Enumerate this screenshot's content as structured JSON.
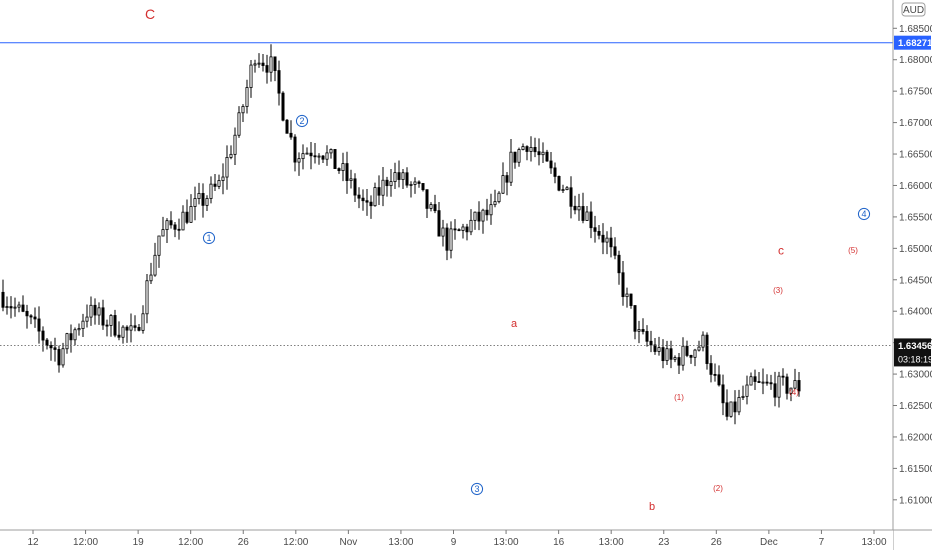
{
  "chart_data": {
    "type": "candlestick",
    "currency_badge": "AUD",
    "y_ticks": [
      "1.68500",
      "1.68000",
      "1.67500",
      "1.67000",
      "1.66500",
      "1.66000",
      "1.65500",
      "1.65000",
      "1.64500",
      "1.64000",
      "1.63500",
      "1.63000",
      "1.62500",
      "1.62000",
      "1.61500",
      "1.61000"
    ],
    "x_ticks": [
      "12",
      "12:00",
      "19",
      "12:00",
      "26",
      "12:00",
      "Nov",
      "13:00",
      "9",
      "13:00",
      "16",
      "13:00",
      "23",
      "26",
      "Dec",
      "7",
      "13:00"
    ],
    "ylim": [
      1.6052,
      1.6895
    ],
    "horizontal_line": {
      "label": "1.68271",
      "value": 1.68271,
      "color": "#2962ff"
    },
    "last_price": {
      "label": "1.63456",
      "value": 1.63456,
      "countdown": "03:18:19"
    },
    "candle_count": 200,
    "anchors": [
      [
        0,
        1.643
      ],
      [
        8,
        1.638
      ],
      [
        15,
        1.633
      ],
      [
        22,
        1.64
      ],
      [
        28,
        1.638
      ],
      [
        34,
        1.636
      ],
      [
        40,
        1.652
      ],
      [
        48,
        1.656
      ],
      [
        55,
        1.66
      ],
      [
        60,
        1.67
      ],
      [
        64,
        1.681
      ],
      [
        68,
        1.679
      ],
      [
        74,
        1.665
      ],
      [
        80,
        1.666
      ],
      [
        86,
        1.662
      ],
      [
        92,
        1.656
      ],
      [
        98,
        1.662
      ],
      [
        105,
        1.659
      ],
      [
        112,
        1.651
      ],
      [
        118,
        1.654
      ],
      [
        124,
        1.656
      ],
      [
        128,
        1.664
      ],
      [
        132,
        1.667
      ],
      [
        138,
        1.662
      ],
      [
        145,
        1.657
      ],
      [
        152,
        1.651
      ],
      [
        160,
        1.636
      ],
      [
        168,
        1.632
      ],
      [
        176,
        1.635
      ],
      [
        182,
        1.623
      ],
      [
        188,
        1.628
      ]
    ],
    "waves": [
      {
        "label": "C",
        "color": "red",
        "ring": false,
        "x": 150,
        "y": 14,
        "size": 14
      },
      {
        "label": "2",
        "color": "blue",
        "ring": true,
        "x": 302,
        "y": 121,
        "size": 9
      },
      {
        "label": "1",
        "color": "blue",
        "ring": true,
        "x": 209,
        "y": 238,
        "size": 9
      },
      {
        "label": "3",
        "color": "blue",
        "ring": true,
        "x": 477,
        "y": 489,
        "size": 9
      },
      {
        "label": "a",
        "color": "red",
        "ring": false,
        "x": 514,
        "y": 323,
        "size": 11
      },
      {
        "label": "b",
        "color": "red",
        "ring": false,
        "x": 652,
        "y": 506,
        "size": 11
      },
      {
        "label": "(1)",
        "color": "red",
        "ring": false,
        "x": 679,
        "y": 397,
        "size": 8
      },
      {
        "label": "(2)",
        "color": "red",
        "ring": false,
        "x": 718,
        "y": 488,
        "size": 8
      },
      {
        "label": "(3)",
        "color": "red",
        "ring": false,
        "x": 778,
        "y": 290,
        "size": 8
      },
      {
        "label": "(4)",
        "color": "red",
        "ring": false,
        "x": 794,
        "y": 392,
        "size": 8
      },
      {
        "label": "c",
        "color": "red",
        "ring": false,
        "x": 781,
        "y": 250,
        "size": 12
      },
      {
        "label": "(5)",
        "color": "red",
        "ring": false,
        "x": 853,
        "y": 250,
        "size": 8
      },
      {
        "label": "4",
        "color": "blue",
        "ring": true,
        "x": 864,
        "y": 214,
        "size": 9
      }
    ]
  }
}
